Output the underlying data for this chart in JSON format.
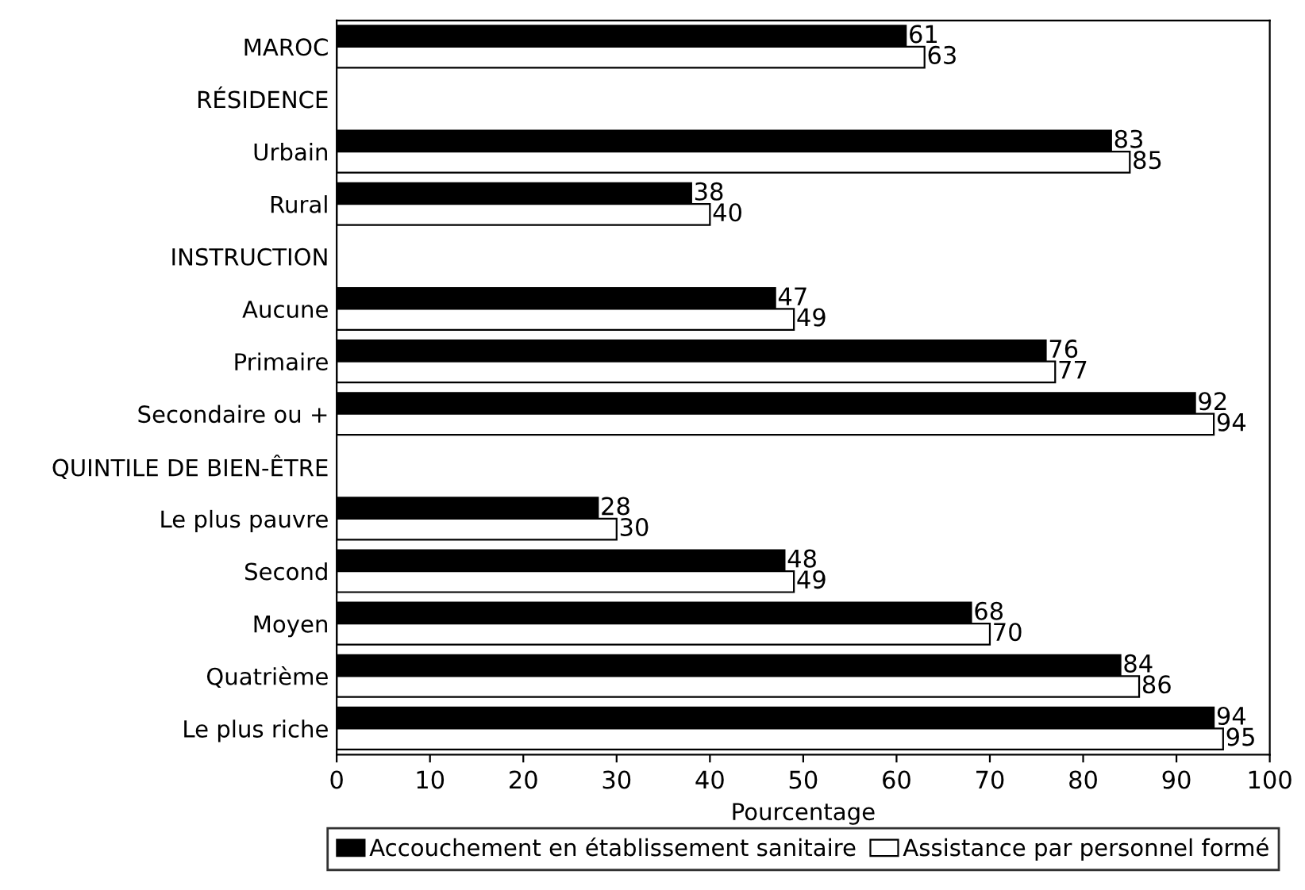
{
  "chart_data": {
    "type": "bar",
    "orientation": "horizontal",
    "xlabel": "Pourcentage",
    "categories": [
      "MAROC",
      "RÉSIDENCE",
      "Urbain",
      "Rural",
      "INSTRUCTION",
      "Aucune",
      "Primaire",
      "Secondaire ou +",
      "QUINTILE DE BIEN-ÊTRE",
      "Le plus pauvre",
      "Second",
      "Moyen",
      "Quatrième",
      "Le plus riche"
    ],
    "series": [
      {
        "name": "Accouchement en établissement sanitaire",
        "color": "#000000",
        "values": [
          61,
          null,
          83,
          38,
          null,
          47,
          76,
          92,
          null,
          28,
          48,
          68,
          84,
          94
        ]
      },
      {
        "name": "Assistance par personnel formé",
        "color": "#ffffff",
        "values": [
          63,
          null,
          85,
          40,
          null,
          49,
          77,
          94,
          null,
          30,
          49,
          70,
          86,
          95
        ]
      }
    ],
    "xlim": [
      0,
      100
    ],
    "xticks": [
      0,
      10,
      20,
      30,
      40,
      50,
      60,
      70,
      80,
      90,
      100
    ],
    "data_labels": true,
    "grid": false,
    "legend": "bottom"
  }
}
